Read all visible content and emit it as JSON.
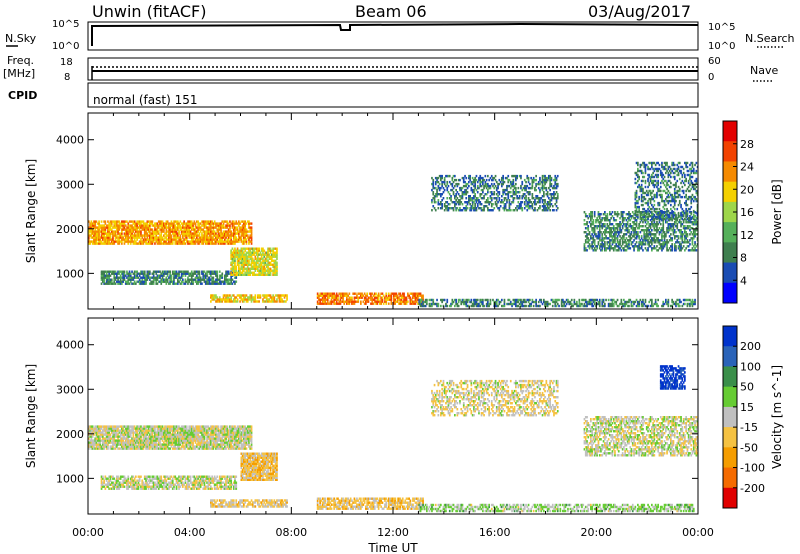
{
  "header": {
    "site": "Unwin (fitACF)",
    "beam": "Beam 06",
    "date": "03/Aug/2017"
  },
  "top_panels": {
    "nsky": {
      "label": "N.Sky",
      "tick_top": "10^5",
      "tick_bottom": "10^0",
      "right_label": "N.Search",
      "right_top": "10^5",
      "right_bottom": "10^0"
    },
    "freq": {
      "label_1": "Freq.",
      "label_2": "[MHz]",
      "tick_top": "18",
      "tick_bottom": "8",
      "right_label": "Nave",
      "right_top": "60",
      "right_bottom": "0"
    },
    "cpid": {
      "label": "CPID",
      "mode": "normal (fast) 151"
    }
  },
  "chart_data": [
    {
      "type": "heatmap",
      "name": "power",
      "ylabel": "Slant Range [km]",
      "yticks": [
        "1000",
        "2000",
        "3000",
        "4000"
      ],
      "ylim": [
        200,
        4600
      ],
      "xlim": [
        0,
        24
      ],
      "xticks": [
        "00:00",
        "04:00",
        "08:00",
        "12:00",
        "16:00",
        "20:00",
        "00:00"
      ],
      "colorbar": {
        "label": "Power [dB]",
        "ticks": [
          "4",
          "8",
          "12",
          "16",
          "20",
          "24",
          "28"
        ],
        "range": [
          0,
          32
        ],
        "colors": [
          "#0000ff",
          "#1a4cb3",
          "#3f7f4f",
          "#55b05a",
          "#9ed64a",
          "#f4d000",
          "#f58a00",
          "#f24200",
          "#e20000"
        ]
      },
      "regions": [
        {
          "t0": 0.0,
          "t1": 6.4,
          "r0": 1650,
          "r1": 2150,
          "level": 22,
          "texture": 0.6
        },
        {
          "t0": 0.5,
          "t1": 5.8,
          "r0": 750,
          "r1": 1050,
          "level": 9,
          "texture": 0.5
        },
        {
          "t0": 5.6,
          "t1": 7.4,
          "r0": 950,
          "r1": 1550,
          "level": 18,
          "texture": 0.6
        },
        {
          "t0": 4.8,
          "t1": 7.8,
          "r0": 350,
          "r1": 500,
          "level": 20,
          "texture": 0.5
        },
        {
          "t0": 9.0,
          "t1": 13.2,
          "r0": 300,
          "r1": 550,
          "level": 24,
          "texture": 0.5
        },
        {
          "t0": 13.0,
          "t1": 23.9,
          "r0": 250,
          "r1": 400,
          "level": 9,
          "texture": 0.35
        },
        {
          "t0": 13.5,
          "t1": 18.5,
          "r0": 2400,
          "r1": 3200,
          "level": 8,
          "texture": 0.25
        },
        {
          "t0": 19.5,
          "t1": 24.0,
          "r0": 1500,
          "r1": 2400,
          "level": 9,
          "texture": 0.35
        },
        {
          "t0": 21.5,
          "t1": 24.0,
          "r0": 2200,
          "r1": 3500,
          "level": 8,
          "texture": 0.2
        }
      ]
    },
    {
      "type": "heatmap",
      "name": "velocity",
      "ylabel": "Slant Range [km]",
      "yticks": [
        "1000",
        "2000",
        "3000",
        "4000"
      ],
      "ylim": [
        200,
        4600
      ],
      "xlim": [
        0,
        24
      ],
      "xticks": [
        "00:00",
        "04:00",
        "08:00",
        "12:00",
        "16:00",
        "20:00",
        "00:00"
      ],
      "xlabel": "Time UT",
      "colorbar": {
        "label": "Velocity [m s^-1]",
        "ticks": [
          "200",
          "100",
          "50",
          "15",
          "-15",
          "-50",
          "-100",
          "-200"
        ],
        "range": [
          -250,
          250
        ],
        "colors": [
          "#0033cc",
          "#2a63b8",
          "#3a8f4a",
          "#66cc33",
          "#c0c0c0",
          "#f5c242",
          "#f59d00",
          "#f56b00",
          "#e00000"
        ]
      },
      "regions": [
        {
          "t0": 0.0,
          "t1": 6.4,
          "r0": 1650,
          "r1": 2150,
          "level": 0,
          "texture": 0.7
        },
        {
          "t0": 0.5,
          "t1": 5.8,
          "r0": 750,
          "r1": 1050,
          "level": 0,
          "texture": 0.5
        },
        {
          "t0": 6.0,
          "t1": 7.4,
          "r0": 950,
          "r1": 1550,
          "level": -60,
          "texture": 0.7
        },
        {
          "t0": 4.8,
          "t1": 7.8,
          "r0": 350,
          "r1": 500,
          "level": -40,
          "texture": 0.5
        },
        {
          "t0": 9.0,
          "t1": 13.2,
          "r0": 300,
          "r1": 550,
          "level": -50,
          "texture": 0.5
        },
        {
          "t0": 13.0,
          "t1": 23.9,
          "r0": 250,
          "r1": 400,
          "level": 30,
          "texture": 0.35
        },
        {
          "t0": 13.5,
          "t1": 18.5,
          "r0": 2400,
          "r1": 3200,
          "level": -20,
          "texture": 0.25
        },
        {
          "t0": 19.5,
          "t1": 24.0,
          "r0": 1500,
          "r1": 2400,
          "level": 0,
          "texture": 0.35
        },
        {
          "t0": 22.5,
          "t1": 23.5,
          "r0": 3000,
          "r1": 3500,
          "level": 220,
          "texture": 0.5
        }
      ]
    }
  ]
}
